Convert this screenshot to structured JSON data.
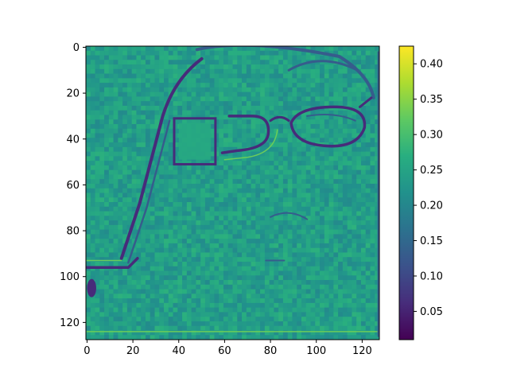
{
  "chart_data": {
    "type": "heatmap",
    "title": "",
    "xlabel": "",
    "ylabel": "",
    "colormap": "viridis",
    "image_size": [
      128,
      128
    ],
    "xlim": [
      0,
      127
    ],
    "ylim": [
      127,
      0
    ],
    "xticks": [
      "0",
      "20",
      "40",
      "60",
      "80",
      "100",
      "120"
    ],
    "xtick_values": [
      0,
      20,
      40,
      60,
      80,
      100,
      120
    ],
    "yticks": [
      "0",
      "20",
      "40",
      "60",
      "80",
      "100",
      "120"
    ],
    "ytick_values": [
      0,
      20,
      40,
      60,
      80,
      100,
      120
    ],
    "colorbar": {
      "range": [
        0.01,
        0.425
      ],
      "ticks": [
        "0.05",
        "0.10",
        "0.15",
        "0.20",
        "0.25",
        "0.30",
        "0.35",
        "0.40"
      ],
      "tick_values": [
        0.05,
        0.1,
        0.15,
        0.2,
        0.25,
        0.3,
        0.35,
        0.4
      ]
    },
    "background_value": 0.24,
    "content": "edge/saliency map of a face wearing glasses; low-value (dark) outline strokes, bright square patch near x=40-55, y=32-52"
  }
}
